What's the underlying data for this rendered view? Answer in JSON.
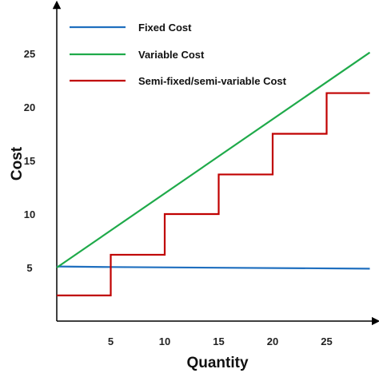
{
  "chart_data": {
    "type": "line",
    "xlabel": "Quantity",
    "ylabel": "Cost",
    "xlim": [
      0,
      29.5
    ],
    "ylim": [
      0,
      29.5
    ],
    "x_ticks": [
      5,
      10,
      15,
      20,
      25
    ],
    "y_ticks": [
      5,
      10,
      15,
      20,
      25
    ],
    "grid": false,
    "legend_position": "top-left",
    "series": [
      {
        "name": "Fixed Cost",
        "color": "#1f6fbf",
        "points": [
          [
            0,
            5.1
          ],
          [
            5,
            5.05
          ],
          [
            29,
            4.9
          ]
        ]
      },
      {
        "name": "Variable Cost",
        "color": "#1faa4a",
        "points": [
          [
            0,
            5.0
          ],
          [
            29,
            25.1
          ]
        ]
      },
      {
        "name": "Semi-fixed/semi-variable Cost",
        "color": "#c00000",
        "points": [
          [
            0,
            2.4
          ],
          [
            5,
            2.4
          ],
          [
            5,
            6.2
          ],
          [
            10,
            6.2
          ],
          [
            10,
            10.0
          ],
          [
            15,
            10.0
          ],
          [
            15,
            13.7
          ],
          [
            20,
            13.7
          ],
          [
            20,
            17.5
          ],
          [
            25,
            17.5
          ],
          [
            25,
            21.3
          ],
          [
            29,
            21.3
          ]
        ]
      }
    ]
  }
}
